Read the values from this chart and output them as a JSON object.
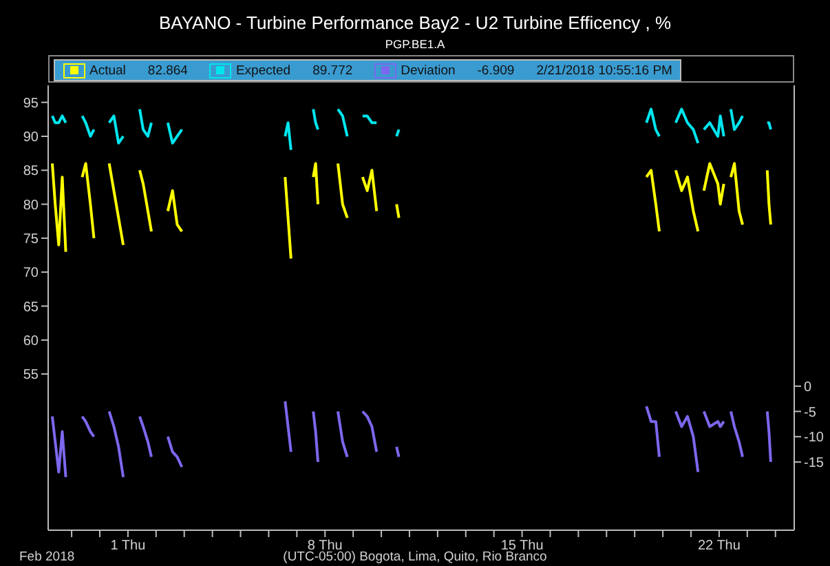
{
  "chart_data": {
    "type": "line",
    "title": "BAYANO - Turbine Performance Bay2 - U2 Turbine Efficency , %",
    "subtitle": "PGP.BE1.A",
    "xlabel": "(UTC-05:00) Bogota, Lima, Quito, Rio Branco",
    "annotations": [
      "82.864",
      "89.772",
      "-6.909",
      "2/21/2018 10:55:16 PM",
      "Feb 2018"
    ],
    "legend": "top",
    "grid": false,
    "marker": "none",
    "line_style": "solid",
    "x": [
      "2018-01-29T07:30",
      "2018-01-29T10:00",
      "2018-01-29T13:00",
      "2018-01-29T16:00",
      "2018-01-29T19:00",
      "2018-01-30T02:00",
      "2018-01-30T09:00",
      "2018-01-30T12:00",
      "2018-01-30T16:00",
      "2018-01-30T19:00",
      "2018-01-31T01:00",
      "2018-01-31T08:00",
      "2018-01-31T12:00",
      "2018-01-31T16:00",
      "2018-01-31T20:00",
      "2018-02-01T03:00",
      "2018-02-01T10:00",
      "2018-02-01T13:00",
      "2018-02-01T17:00",
      "2018-02-01T20:00",
      "2018-02-02T03:00",
      "2018-02-02T10:00",
      "2018-02-02T14:00",
      "2018-02-02T18:00",
      "2018-02-02T22:00",
      "2018-02-04T12:00",
      "2018-02-06T14:00",
      "2018-02-06T16:30",
      "2018-02-06T19:00",
      "2018-02-07T04:00",
      "2018-02-07T14:00",
      "2018-02-07T16:00",
      "2018-02-07T18:00",
      "2018-02-08T02:00",
      "2018-02-08T11:00",
      "2018-02-08T15:00",
      "2018-02-08T19:00",
      "2018-02-09T01:00",
      "2018-02-09T08:00",
      "2018-02-09T12:00",
      "2018-02-09T16:00",
      "2018-02-09T20:00",
      "2018-02-10T04:00",
      "2018-02-10T13:00",
      "2018-02-10T15:00",
      "2018-02-15T00:00",
      "2018-02-19T10:00",
      "2018-02-19T14:00",
      "2018-02-19T18:00",
      "2018-02-19T21:00",
      "2018-02-20T04:00",
      "2018-02-20T11:00",
      "2018-02-20T16:00",
      "2018-02-20T21:00",
      "2018-02-21T02:00",
      "2018-02-21T06:00",
      "2018-02-21T08:30",
      "2018-02-21T11:00",
      "2018-02-21T16:00",
      "2018-02-21T22:55",
      "2018-02-22T01:00",
      "2018-02-22T04:00",
      "2018-02-22T07:00",
      "2018-02-22T10:00",
      "2018-02-22T13:00",
      "2018-02-22T17:00",
      "2018-02-22T20:00",
      "2018-02-23T04:00",
      "2018-02-23T17:00",
      "2018-02-23T18:30",
      "2018-02-23T20:00"
    ],
    "series": [
      {
        "name": "Actual",
        "color": "#ffff00",
        "values": [
          86,
          80,
          74,
          84,
          73,
          null,
          84,
          86,
          80,
          75,
          null,
          86,
          82,
          78,
          74,
          null,
          85,
          83,
          79,
          76,
          null,
          79,
          82,
          77,
          76,
          null,
          84,
          78,
          72,
          null,
          84,
          86,
          80,
          null,
          86,
          80,
          78,
          null,
          84,
          82,
          85,
          79,
          null,
          80,
          78,
          null,
          84,
          85,
          80,
          76,
          null,
          85,
          82,
          84,
          79,
          76,
          null,
          82,
          86,
          83,
          80,
          83,
          null,
          84,
          86,
          79,
          77,
          null,
          85,
          80,
          77
        ]
      },
      {
        "name": "Expected",
        "color": "#00e5ee",
        "values": [
          93,
          92,
          92,
          93,
          92,
          null,
          93,
          92,
          90,
          91,
          null,
          92,
          93,
          89,
          90,
          null,
          94,
          91,
          90,
          92,
          null,
          92,
          89,
          90,
          91,
          null,
          90,
          92,
          88,
          null,
          94,
          92,
          91,
          null,
          94,
          93,
          90,
          null,
          93,
          93,
          92,
          92,
          null,
          90,
          91,
          null,
          92,
          94,
          91,
          90,
          null,
          92,
          94,
          92,
          91,
          89,
          null,
          91,
          92,
          90,
          93,
          90,
          null,
          94,
          91,
          92,
          93,
          null,
          92,
          92,
          91
        ]
      },
      {
        "name": "Deviation",
        "color": "#7b68ee",
        "axis": "y2",
        "values": [
          -6,
          -11,
          -17,
          -9,
          -18,
          null,
          -6,
          -7,
          -9,
          -10,
          null,
          -5,
          -8,
          -12,
          -18,
          null,
          -6,
          -8,
          -11,
          -14,
          null,
          -10,
          -13,
          -14,
          -16,
          null,
          -3,
          -8,
          -13,
          null,
          -5,
          -9,
          -15,
          null,
          -5,
          -11,
          -14,
          null,
          -5,
          -6,
          -8,
          -13,
          null,
          -12,
          -14,
          null,
          -4,
          -7,
          -7,
          -14,
          null,
          -5,
          -8,
          -6,
          -10,
          -17,
          null,
          -5,
          -8,
          -7,
          -8,
          -7,
          null,
          -5,
          -8,
          -11,
          -14,
          null,
          -5,
          -9,
          -15
        ]
      }
    ],
    "xlim": [
      "2018-01-29T04:00",
      "2018-02-24T16:00"
    ],
    "xticks": [
      {
        "value": "2018-01-30",
        "label": null
      },
      {
        "value": "2018-01-31",
        "label": null
      },
      {
        "value": "2018-02-01",
        "label": "1 Thu"
      },
      {
        "value": "2018-02-02",
        "label": null
      },
      {
        "value": "2018-02-03",
        "label": null
      },
      {
        "value": "2018-02-04",
        "label": null
      },
      {
        "value": "2018-02-05",
        "label": null
      },
      {
        "value": "2018-02-06",
        "label": null
      },
      {
        "value": "2018-02-07",
        "label": null
      },
      {
        "value": "2018-02-08",
        "label": "8 Thu"
      },
      {
        "value": "2018-02-09",
        "label": null
      },
      {
        "value": "2018-02-10",
        "label": null
      },
      {
        "value": "2018-02-11",
        "label": null
      },
      {
        "value": "2018-02-12",
        "label": null
      },
      {
        "value": "2018-02-13",
        "label": null
      },
      {
        "value": "2018-02-14",
        "label": null
      },
      {
        "value": "2018-02-15",
        "label": "15 Thu"
      },
      {
        "value": "2018-02-16",
        "label": null
      },
      {
        "value": "2018-02-17",
        "label": null
      },
      {
        "value": "2018-02-18",
        "label": null
      },
      {
        "value": "2018-02-19",
        "label": null
      },
      {
        "value": "2018-02-20",
        "label": null
      },
      {
        "value": "2018-02-21",
        "label": null
      },
      {
        "value": "2018-02-22",
        "label": "22 Thu"
      },
      {
        "value": "2018-02-23",
        "label": null
      },
      {
        "value": "2018-02-24",
        "label": null
      }
    ],
    "ylim": [
      32,
      97.5
    ],
    "yticks": [
      55,
      60,
      65,
      70,
      75,
      80,
      85,
      90,
      95
    ],
    "y2lim": [
      -28.5,
      59.5
    ],
    "y2ticks": [
      0,
      -5,
      -10,
      -15
    ]
  }
}
